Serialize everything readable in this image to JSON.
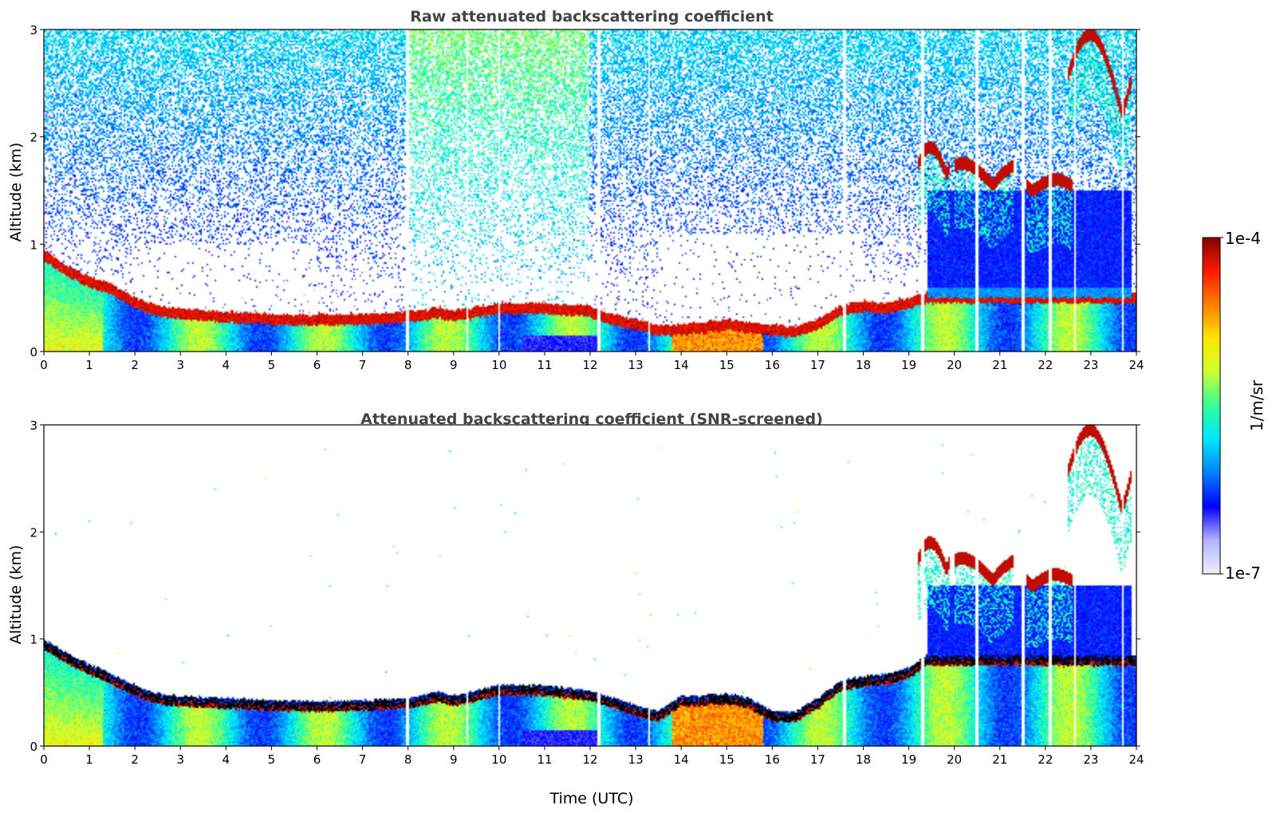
{
  "chart_data": [
    {
      "type": "heatmap",
      "title": "Raw attenuated backscattering coefficient",
      "xlabel": "",
      "ylabel": "Altitude (km)",
      "xlim": [
        0,
        24
      ],
      "ylim": [
        0,
        3
      ],
      "x_ticks": [
        "0",
        "1",
        "2",
        "3",
        "4",
        "5",
        "6",
        "7",
        "8",
        "9",
        "10",
        "11",
        "12",
        "13",
        "14",
        "15",
        "16",
        "17",
        "18",
        "19",
        "20",
        "21",
        "22",
        "23",
        "24"
      ],
      "y_ticks": [
        "0",
        "1",
        "2",
        "3"
      ],
      "screened": false,
      "boundary_layer_top_km": [
        [
          0,
          0.9
        ],
        [
          0.5,
          0.75
        ],
        [
          1,
          0.65
        ],
        [
          1.5,
          0.58
        ],
        [
          2,
          0.45
        ],
        [
          2.5,
          0.38
        ],
        [
          3,
          0.35
        ],
        [
          4,
          0.32
        ],
        [
          5,
          0.3
        ],
        [
          6,
          0.29
        ],
        [
          7,
          0.3
        ],
        [
          8,
          0.32
        ],
        [
          8.7,
          0.36
        ],
        [
          9,
          0.33
        ],
        [
          10,
          0.4
        ],
        [
          11,
          0.4
        ],
        [
          12,
          0.37
        ],
        [
          12.5,
          0.3
        ],
        [
          13,
          0.25
        ],
        [
          13.5,
          0.2
        ],
        [
          14,
          0.2
        ],
        [
          15,
          0.25
        ],
        [
          16,
          0.2
        ],
        [
          16.5,
          0.18
        ],
        [
          17,
          0.25
        ],
        [
          17.5,
          0.38
        ],
        [
          18,
          0.42
        ],
        [
          18.5,
          0.4
        ],
        [
          19,
          0.45
        ],
        [
          19.4,
          0.5
        ]
      ],
      "cloud_layers": [
        {
          "x": [
            19.2,
            19.9
          ],
          "altitude_km": [
            1.65,
            1.9
          ]
        },
        {
          "x": [
            20.0,
            21.3
          ],
          "altitude_km": [
            1.55,
            1.75
          ]
        },
        {
          "x": [
            21.6,
            22.6
          ],
          "altitude_km": [
            1.5,
            1.6
          ]
        },
        {
          "x": [
            22.5,
            23.9
          ],
          "altitude_km": [
            2.2,
            2.95
          ]
        }
      ],
      "data_gaps_utc": [
        8,
        9.3,
        10,
        12.2,
        13.3,
        17.6,
        19.3,
        20.5,
        21.5,
        22.1,
        22.65,
        23.7
      ]
    },
    {
      "type": "heatmap",
      "title": "Attenuated backscattering coefficient (SNR-screened)",
      "xlabel": "Time (UTC)",
      "ylabel": "Altitude (km)",
      "xlim": [
        0,
        24
      ],
      "ylim": [
        0,
        3
      ],
      "x_ticks": [
        "0",
        "1",
        "2",
        "3",
        "4",
        "5",
        "6",
        "7",
        "8",
        "9",
        "10",
        "11",
        "12",
        "13",
        "14",
        "15",
        "16",
        "17",
        "18",
        "19",
        "20",
        "21",
        "22",
        "23",
        "24"
      ],
      "y_ticks": [
        "0",
        "1",
        "2",
        "3"
      ],
      "screened": true,
      "boundary_layer_top_km": [
        [
          0,
          0.95
        ],
        [
          0.5,
          0.82
        ],
        [
          1,
          0.72
        ],
        [
          1.5,
          0.62
        ],
        [
          2,
          0.52
        ],
        [
          2.5,
          0.44
        ],
        [
          3,
          0.42
        ],
        [
          4,
          0.4
        ],
        [
          5,
          0.38
        ],
        [
          6,
          0.37
        ],
        [
          7,
          0.38
        ],
        [
          8,
          0.4
        ],
        [
          8.7,
          0.46
        ],
        [
          9,
          0.42
        ],
        [
          10,
          0.52
        ],
        [
          11,
          0.52
        ],
        [
          12,
          0.47
        ],
        [
          12.5,
          0.4
        ],
        [
          13,
          0.33
        ],
        [
          13.5,
          0.28
        ],
        [
          14,
          0.42
        ],
        [
          15,
          0.44
        ],
        [
          15.5,
          0.4
        ],
        [
          16,
          0.28
        ],
        [
          16.5,
          0.27
        ],
        [
          17,
          0.4
        ],
        [
          17.5,
          0.56
        ],
        [
          18,
          0.6
        ],
        [
          18.5,
          0.62
        ],
        [
          19,
          0.68
        ],
        [
          19.4,
          0.8
        ]
      ],
      "cloud_layers": [
        {
          "x": [
            19.2,
            19.9
          ],
          "altitude_km": [
            1.65,
            1.9
          ]
        },
        {
          "x": [
            20.0,
            21.3
          ],
          "altitude_km": [
            1.55,
            1.75
          ]
        },
        {
          "x": [
            21.6,
            22.6
          ],
          "altitude_km": [
            1.5,
            1.6
          ]
        },
        {
          "x": [
            22.5,
            23.9
          ],
          "altitude_km": [
            2.2,
            2.95
          ]
        }
      ],
      "data_gaps_utc": [
        8,
        9.3,
        10,
        12.2,
        13.3,
        17.6,
        19.3,
        20.5,
        21.5,
        22.1,
        22.65,
        23.7
      ]
    }
  ],
  "colorbar": {
    "label": "1/m/sr",
    "max_label": "1e-4",
    "min_label": "1e-7",
    "log_range": [
      -7,
      -4
    ],
    "colors": [
      "#eeeeff",
      "#b3b3ff",
      "#0000ff",
      "#0080ff",
      "#00e5ff",
      "#33ff99",
      "#ccff33",
      "#ffe600",
      "#ff8000",
      "#ff1a00",
      "#800000"
    ]
  }
}
